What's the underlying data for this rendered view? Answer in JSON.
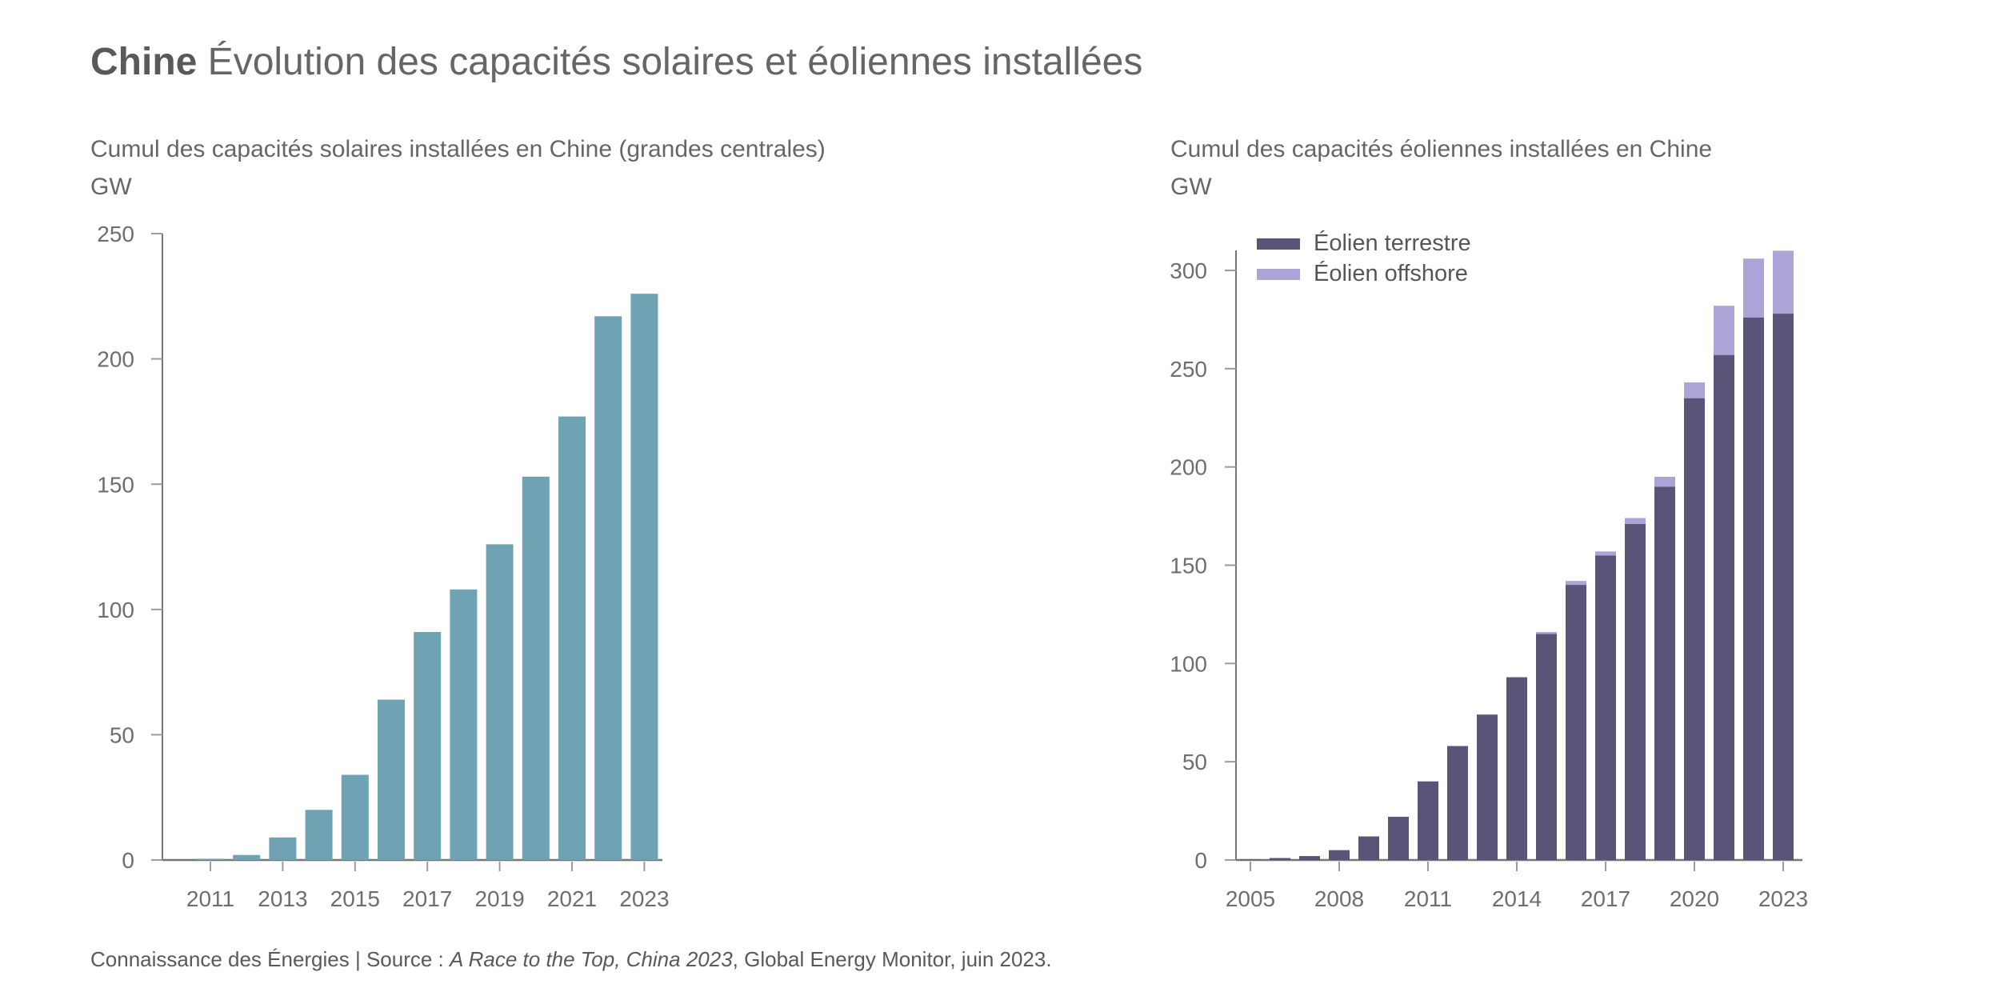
{
  "title": {
    "bold": "Chine",
    "rest": " Évolution des capacités solaires et éoliennes installées"
  },
  "footer": {
    "prefix": "Connaissance des Énergies | Source : ",
    "source_italic": "A Race to the Top, China 2023",
    "suffix": ", Global Energy Monitor, juin 2023."
  },
  "colors": {
    "solar": "#6FA3B3",
    "wind_onshore": "#5A5479",
    "wind_offshore": "#ABA4D6",
    "axis": "#757575",
    "tick": "#9B9B9B",
    "axis_label": "#6E6E6E"
  },
  "chart_data": [
    {
      "type": "bar",
      "title": "Cumul des capacités solaires installées en Chine (grandes centrales)",
      "unit": "GW",
      "categories": [
        2011,
        2012,
        2013,
        2014,
        2015,
        2016,
        2017,
        2018,
        2019,
        2020,
        2021,
        2022,
        2023
      ],
      "values": [
        0.5,
        2,
        9,
        20,
        34,
        64,
        91,
        108,
        126,
        153,
        177,
        217,
        226
      ],
      "ylim": [
        0,
        250
      ],
      "yticks": [
        0,
        50,
        100,
        150,
        200,
        250
      ],
      "xtick_labels": [
        2011,
        2013,
        2015,
        2017,
        2019,
        2021,
        2023
      ],
      "grid": false,
      "legend": "none",
      "bar_color_key": "solar"
    },
    {
      "type": "stacked-bar",
      "title": "Cumul des capacités éoliennes installées en Chine",
      "unit": "GW",
      "categories": [
        2005,
        2006,
        2007,
        2008,
        2009,
        2010,
        2011,
        2012,
        2013,
        2014,
        2015,
        2016,
        2017,
        2018,
        2019,
        2020,
        2021,
        2022,
        2023
      ],
      "series": [
        {
          "name": "Éolien terrestre",
          "color_key": "wind_onshore",
          "values": [
            0.3,
            1,
            2,
            5,
            12,
            22,
            40,
            58,
            74,
            93,
            115,
            140,
            155,
            171,
            190,
            235,
            257,
            276,
            278
          ]
        },
        {
          "name": "Éolien offshore",
          "color_key": "wind_offshore",
          "values": [
            0,
            0,
            0,
            0,
            0,
            0,
            0,
            0,
            0,
            0,
            1,
            2,
            2,
            3,
            5,
            8,
            25,
            30,
            32
          ]
        }
      ],
      "ylim": [
        0,
        310
      ],
      "yticks": [
        0,
        50,
        100,
        150,
        200,
        250,
        300
      ],
      "xtick_labels": [
        2005,
        2008,
        2011,
        2014,
        2017,
        2020,
        2023
      ],
      "grid": false,
      "legend_position": "top-left-inside"
    }
  ]
}
